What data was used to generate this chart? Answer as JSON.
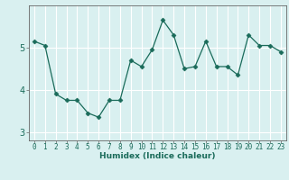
{
  "x": [
    0,
    1,
    2,
    3,
    4,
    5,
    6,
    7,
    8,
    9,
    10,
    11,
    12,
    13,
    14,
    15,
    16,
    17,
    18,
    19,
    20,
    21,
    22,
    23
  ],
  "y": [
    5.15,
    5.05,
    3.9,
    3.75,
    3.75,
    3.45,
    3.35,
    3.75,
    3.75,
    4.7,
    4.55,
    4.95,
    5.65,
    5.3,
    4.5,
    4.55,
    5.15,
    4.55,
    4.55,
    4.35,
    5.3,
    5.05,
    5.05,
    4.9
  ],
  "line_color": "#1a6b5a",
  "marker": "D",
  "marker_size": 2.5,
  "bg_color": "#d9f0f0",
  "grid_color": "#ffffff",
  "xlabel": "Humidex (Indice chaleur)",
  "ylim": [
    2.8,
    6.0
  ],
  "yticks": [
    3,
    4,
    5
  ],
  "xlim": [
    -0.5,
    23.5
  ],
  "xticks": [
    0,
    1,
    2,
    3,
    4,
    5,
    6,
    7,
    8,
    9,
    10,
    11,
    12,
    13,
    14,
    15,
    16,
    17,
    18,
    19,
    20,
    21,
    22,
    23
  ],
  "title_color": "#1a6b5a",
  "axis_color": "#666666",
  "font_size_label": 6.5,
  "font_size_xtick": 5.5,
  "font_size_ytick": 7.0
}
